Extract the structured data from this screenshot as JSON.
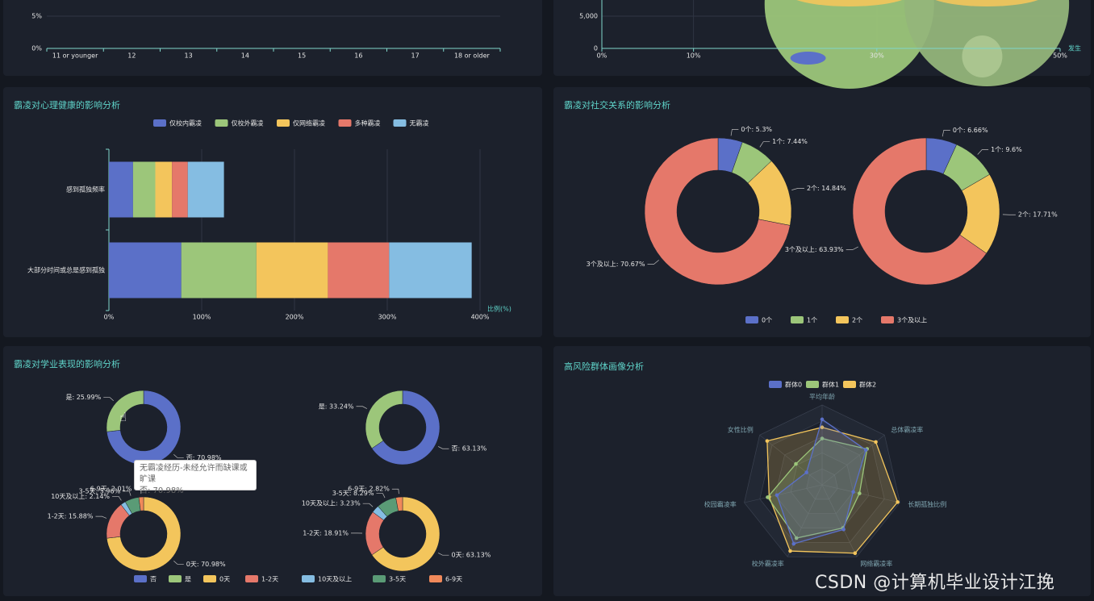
{
  "chart_data": [
    {
      "id": "age",
      "type": "line",
      "title": "",
      "ylabel": "",
      "xlabel": "",
      "categories": [
        "11 or younger",
        "12",
        "13",
        "14",
        "15",
        "16",
        "17",
        "18 or older"
      ],
      "y_ticks": [
        "5%",
        "0%"
      ],
      "series": []
    },
    {
      "id": "bubble",
      "type": "scatter",
      "title": "",
      "x_ticks": [
        "0%",
        "10%",
        "30%",
        "50%"
      ],
      "x_tick_values": [
        0,
        10,
        30,
        50
      ],
      "y_ticks": [
        "5,000",
        "0"
      ],
      "y_tick_values": [
        5000,
        0
      ],
      "xlabel": "发生",
      "series": [
        {
          "name": "bubble-a",
          "x": 27,
          "color": "#9cc67a"
        },
        {
          "name": "bubble-b",
          "x": 42,
          "color": "#93b57a"
        }
      ]
    },
    {
      "id": "mental",
      "type": "bar",
      "orientation": "horizontal",
      "stacked": true,
      "title": "霸凌对心理健康的影响分析",
      "xlabel": "比例(%)",
      "xlim": [
        0,
        400
      ],
      "x_ticks": [
        "0%",
        "100%",
        "200%",
        "300%",
        "400%"
      ],
      "categories": [
        "感到孤独频率",
        "大部分时间或总是感到孤独"
      ],
      "series": [
        {
          "name": "仅校内霸凌",
          "color": "#5b70c8",
          "values": [
            26,
            78
          ]
        },
        {
          "name": "仅校外霸凌",
          "color": "#9cc67a",
          "values": [
            24,
            81
          ]
        },
        {
          "name": "仅网络霸凌",
          "color": "#f3c55c",
          "values": [
            18,
            77
          ]
        },
        {
          "name": "多种霸凌",
          "color": "#e5786a",
          "values": [
            17,
            66
          ]
        },
        {
          "name": "无霸凌",
          "color": "#85bde2",
          "values": [
            39,
            89
          ]
        }
      ]
    },
    {
      "id": "social",
      "type": "pie",
      "donut": true,
      "title": "霸凌对社交关系的影响分析",
      "legend": [
        {
          "name": "0个",
          "color": "#5b70c8"
        },
        {
          "name": "1个",
          "color": "#9cc67a"
        },
        {
          "name": "2个",
          "color": "#f3c55c"
        },
        {
          "name": "3个及以上",
          "color": "#e5786a"
        }
      ],
      "pies": [
        {
          "slices": [
            {
              "name": "0个",
              "value": 5.3,
              "label": "0个: 5.3%"
            },
            {
              "name": "1个",
              "value": 7.44,
              "label": "1个: 7.44%"
            },
            {
              "name": "2个",
              "value": 14.84,
              "label": "2个: 14.84%"
            },
            {
              "name": "3个及以上",
              "value": 70.67,
              "label": "3个及以上: 70.67%"
            }
          ]
        },
        {
          "slices": [
            {
              "name": "0个",
              "value": 6.66,
              "label": "0个: 6.66%"
            },
            {
              "name": "1个",
              "value": 9.6,
              "label": "1个: 9.6%"
            },
            {
              "name": "2个",
              "value": 17.71,
              "label": "2个: 17.71%"
            },
            {
              "name": "3个及以上",
              "value": 63.93,
              "label": "3个及以上: 63.93%"
            }
          ]
        }
      ]
    },
    {
      "id": "academic",
      "type": "pie",
      "donut": true,
      "title": "霸凌对学业表现的影响分析",
      "legend": [
        {
          "name": "否",
          "color": "#5b70c8"
        },
        {
          "name": "是",
          "color": "#9cc67a"
        },
        {
          "name": "0天",
          "color": "#f3c55c"
        },
        {
          "name": "1-2天",
          "color": "#e5786a"
        },
        {
          "name": "10天及以上",
          "color": "#85bde2"
        },
        {
          "name": "3-5天",
          "color": "#5a9b76"
        },
        {
          "name": "6-9天",
          "color": "#f0895a"
        }
      ],
      "pies": [
        {
          "slices": [
            {
              "name": "否",
              "value": 70.98,
              "label": "否: 70.98%"
            },
            {
              "name": "是",
              "value": 25.99,
              "label": "是: 25.99%"
            }
          ]
        },
        {
          "slices": [
            {
              "name": "否",
              "value": 63.13,
              "label": "否: 63.13%"
            },
            {
              "name": "是",
              "value": 33.24,
              "label": "是: 33.24%"
            }
          ]
        },
        {
          "slices": [
            {
              "name": "0天",
              "value": 70.98,
              "label": "0天: 70.98%"
            },
            {
              "name": "1-2天",
              "value": 15.88,
              "label": "1-2天: 15.88%"
            },
            {
              "name": "10天及以上",
              "value": 2.14,
              "label": "10天及以上: 2.14%"
            },
            {
              "name": "3-5天",
              "value": 5.96,
              "label": "3-5天: 5.96%"
            },
            {
              "name": "6-9天",
              "value": 2.01,
              "label": "6-9天: 2.01%"
            }
          ]
        },
        {
          "slices": [
            {
              "name": "0天",
              "value": 63.13,
              "label": "0天: 63.13%"
            },
            {
              "name": "1-2天",
              "value": 18.91,
              "label": "1-2天: 18.91%"
            },
            {
              "name": "10天及以上",
              "value": 3.23,
              "label": "10天及以上: 3.23%"
            },
            {
              "name": "3-5天",
              "value": 8.29,
              "label": "3-5天: 8.29%"
            },
            {
              "name": "6-9天",
              "value": 2.82,
              "label": "6-9天: 2.82%"
            }
          ]
        }
      ],
      "tooltip": {
        "line1": "无霸凌经历-未经允许而缺课或旷课",
        "line2": "否: 70.98%"
      }
    },
    {
      "id": "radar",
      "type": "radar",
      "title": "高风险群体画像分析",
      "indicators": [
        "平均年龄",
        "总体霸凌率",
        "长期孤独比例",
        "网络霸凌率",
        "校外霸凌率",
        "校园霸凌率",
        "女性比例"
      ],
      "series": [
        {
          "name": "群体0",
          "color": "#5b70c8",
          "values": [
            0.82,
            0.7,
            0.4,
            0.62,
            0.82,
            0.58,
            0.25
          ]
        },
        {
          "name": "群体1",
          "color": "#9cc67a",
          "values": [
            0.58,
            0.72,
            0.48,
            0.6,
            0.74,
            0.7,
            0.42
          ]
        },
        {
          "name": "群体2",
          "color": "#f3c55c",
          "values": [
            0.72,
            0.86,
            0.97,
            0.95,
            0.92,
            0.68,
            0.88
          ]
        }
      ]
    }
  ],
  "watermark": "CSDN @计算机毕业设计江挽"
}
